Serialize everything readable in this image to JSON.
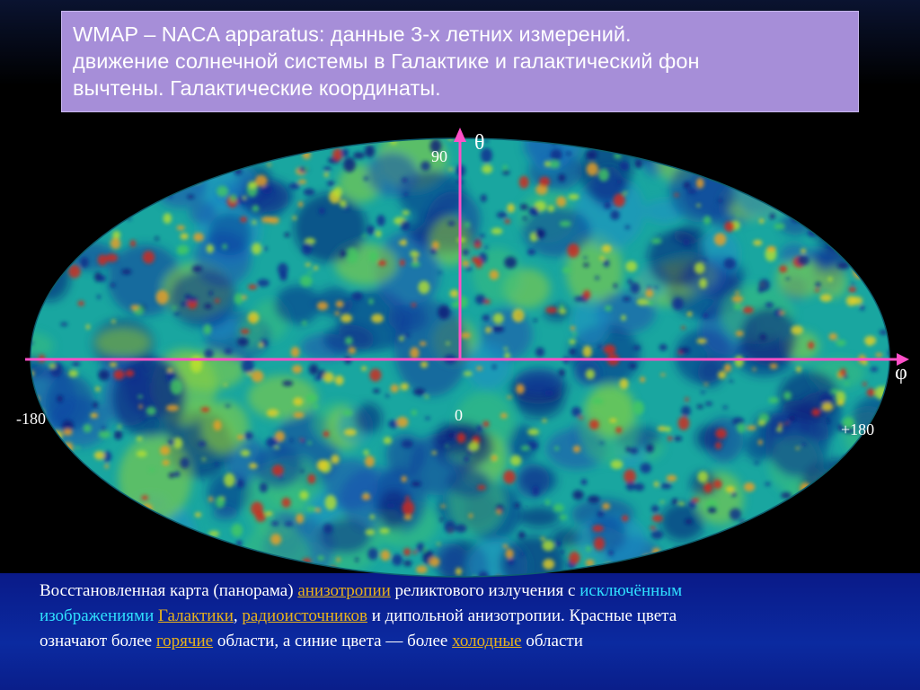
{
  "title": {
    "line1": "WMAP – NACA apparatus: данные 3-х летних измерений.",
    "line2": "движение солнечной системы в Галактике и галактический фон",
    "line3": "вычтены. Галактические координаты."
  },
  "axes": {
    "theta_symbol": "θ",
    "phi_symbol": "φ",
    "top_value": "90",
    "center_value": "0",
    "left_value": "-180",
    "right_value": "+180"
  },
  "caption": {
    "l1_a": "Восстановленная карта (панорама) ",
    "l1_link": "анизотропии",
    "l1_b": " реликтового излучения с ",
    "l1_c": "исключённым",
    "l2_a": "изображениями",
    "l2_b": " ",
    "l2_link1": "Галактики",
    "l2_c": ", ",
    "l2_link2": "радиоисточников",
    "l2_d": " и дипольной анизотропии. Красные цвета",
    "l3_a": "означают более ",
    "l3_link1": "горячие",
    "l3_b": " области, а синие цвета — более ",
    "l3_link2": "холодные",
    "l3_c": " области"
  },
  "colors": {
    "map_base": "#19a6a0",
    "hot": "#d62818",
    "warm": "#e8d020",
    "cold": "#0a1a78",
    "axis_line": "#ff4fc8",
    "link": "#e8b21c",
    "highlight": "#2fe0ff"
  }
}
